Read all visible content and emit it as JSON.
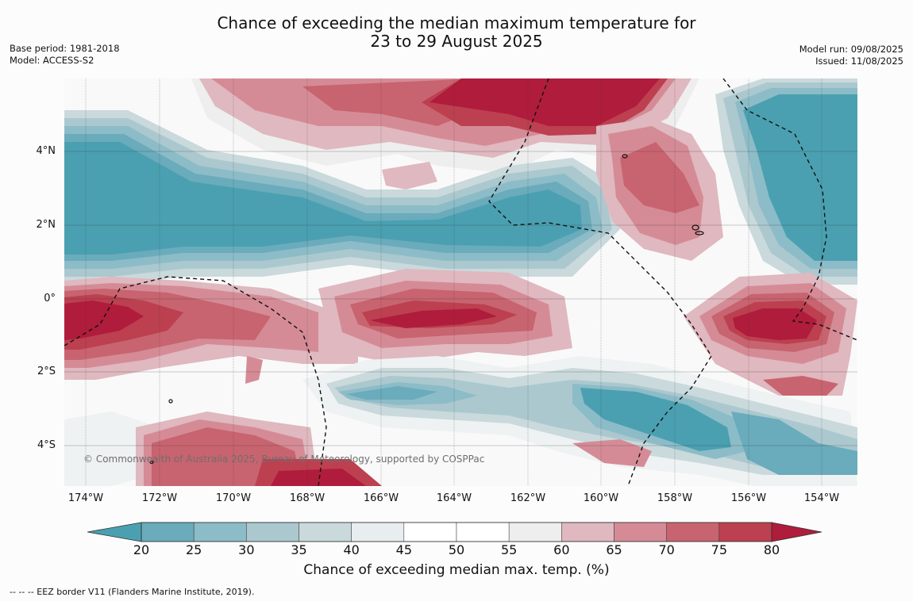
{
  "title_line1": "Chance of exceeding the median maximum temperature for",
  "title_line2": "23 to 29 August 2025",
  "base_period": "Base period: 1981-2018",
  "model": "Model: ACCESS-S2",
  "model_run": "Model run: 09/08/2025",
  "issued": "Issued: 11/08/2025",
  "copyright": "© Commonwealth of Australia 2025, Bureau of Meteorology, supported by COSPPac",
  "lat_labels": [
    "4°N",
    "2°N",
    "0°",
    "2°S",
    "4°S"
  ],
  "lon_labels": [
    "174°W",
    "172°W",
    "170°W",
    "168°W",
    "166°W",
    "164°W",
    "162°W",
    "160°W",
    "158°W",
    "156°W",
    "154°W"
  ],
  "legend": {
    "title": "Chance of exceeding median max. temp. (%)",
    "ticks": [
      "20",
      "25",
      "30",
      "35",
      "40",
      "45",
      "50",
      "55",
      "60",
      "65",
      "70",
      "75",
      "80"
    ],
    "colors": [
      "#4aa0b1",
      "#6aabbc",
      "#8cbcc7",
      "#abc8cf",
      "#c9d9dc",
      "#e8eeef",
      "#ffffff",
      "#ffffff",
      "#eeeeee",
      "#e0b8bf",
      "#d58b96",
      "#c8646f",
      "#bc4050",
      "#b01c3c"
    ]
  },
  "footnote": "--  --  -- EEZ border V11 (Flanders Marine Institute, 2019)."
}
